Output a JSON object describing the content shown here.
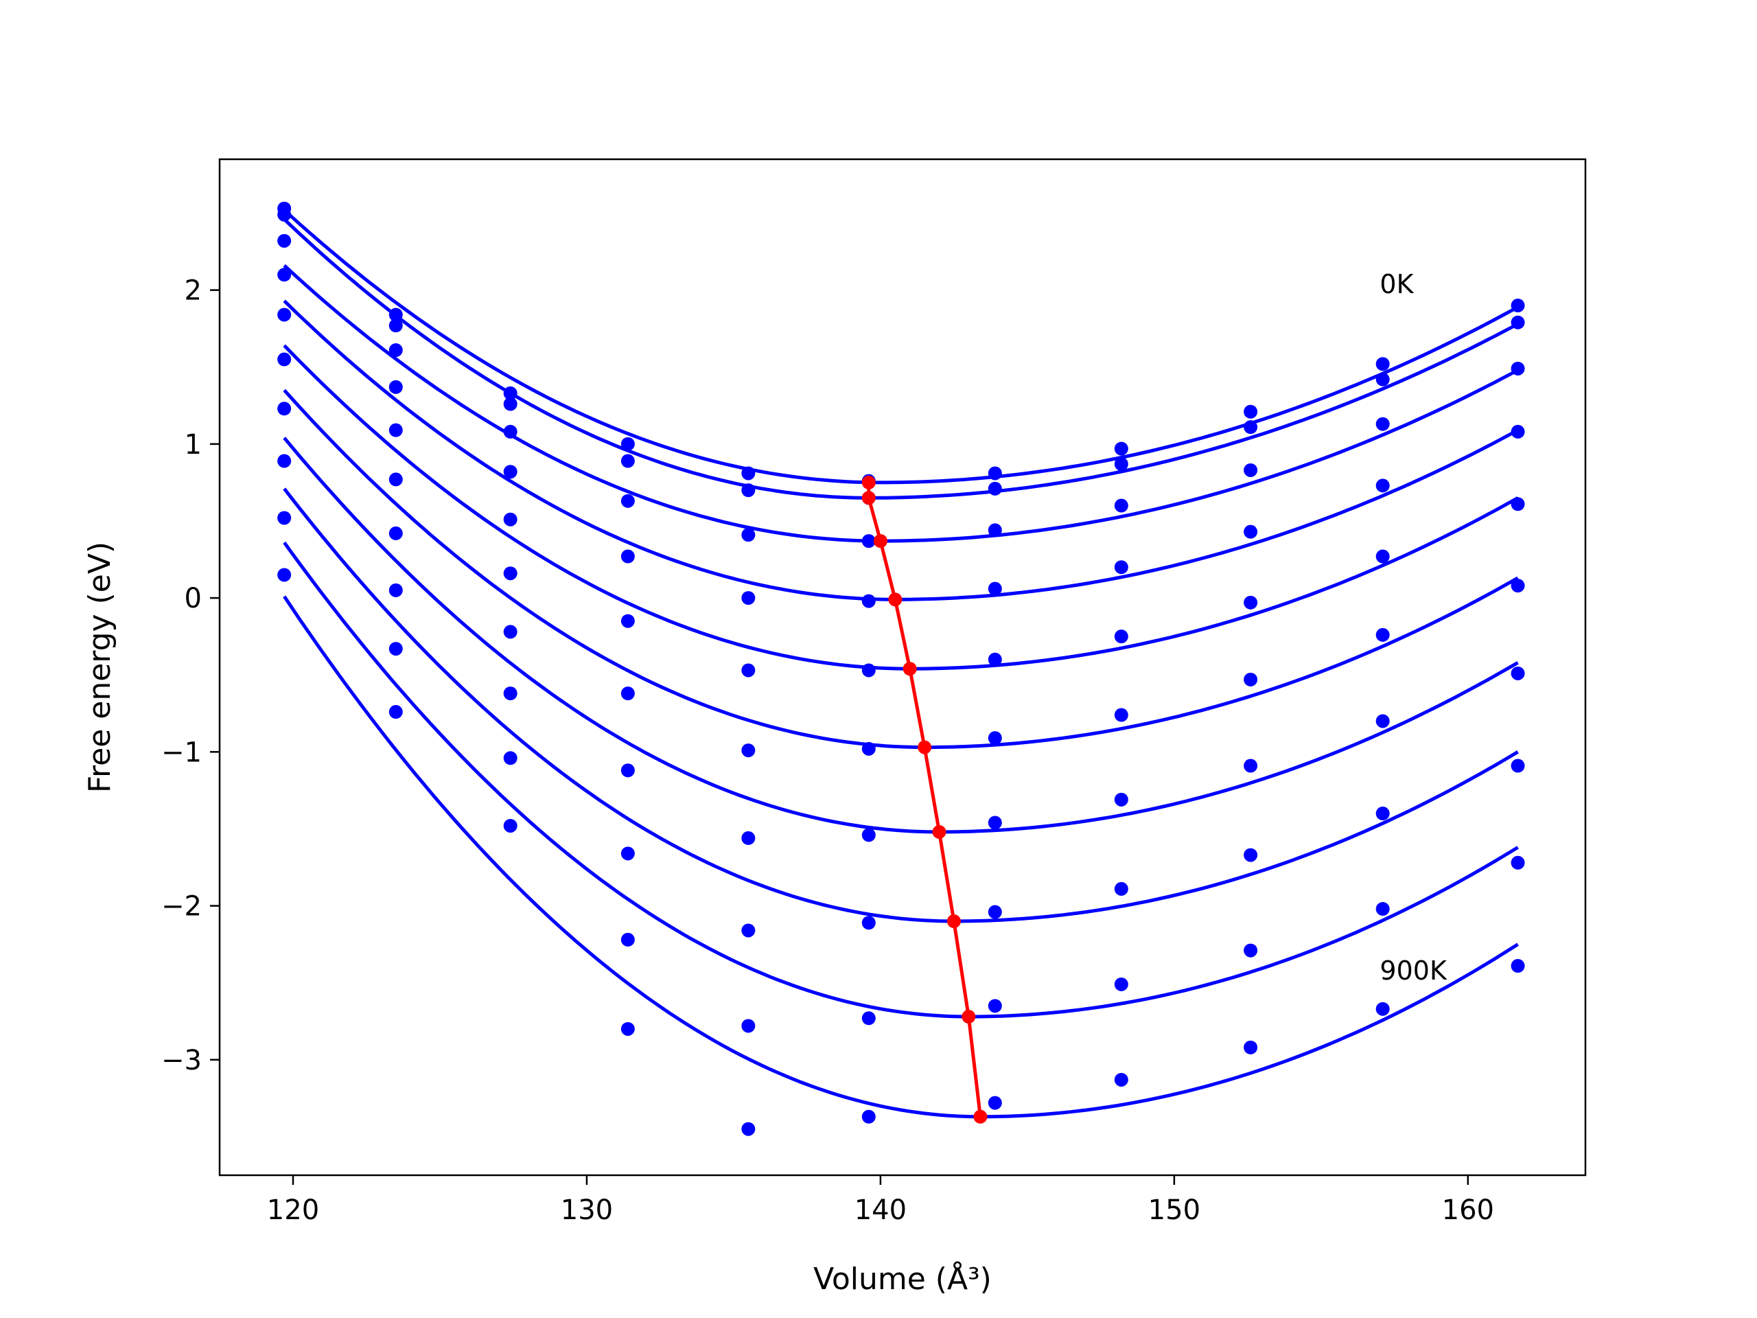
{
  "chart_data": {
    "type": "scatter",
    "xlabel": "Volume (Å³)",
    "ylabel": "Free energy (eV)",
    "xlim": [
      117.5,
      164
    ],
    "ylim": [
      -3.75,
      2.85
    ],
    "xticks": [
      120,
      130,
      140,
      150,
      160
    ],
    "yticks": [
      -3,
      -2,
      -1,
      0,
      1,
      2
    ],
    "ytick_labels": [
      "−3",
      "−2",
      "−1",
      "0",
      "1",
      "2"
    ],
    "grid": false,
    "legend": "none",
    "x": [
      119.7,
      123.5,
      127.4,
      131.4,
      135.5,
      139.6,
      143.9,
      148.2,
      152.6,
      157.1,
      161.7
    ],
    "series": [
      {
        "color": "#0000ff",
        "values": [
          2.53,
          1.84,
          1.33,
          1.0,
          0.81,
          0.76,
          0.81,
          0.97,
          1.21,
          1.52,
          1.9
        ]
      },
      {
        "color": "#0000ff",
        "values": [
          2.49,
          1.77,
          1.26,
          0.89,
          0.7,
          0.65,
          0.71,
          0.87,
          1.11,
          1.42,
          1.79
        ]
      },
      {
        "color": "#0000ff",
        "values": [
          2.32,
          1.61,
          1.08,
          0.63,
          0.41,
          0.37,
          0.44,
          0.6,
          0.83,
          1.13,
          1.49
        ]
      },
      {
        "color": "#0000ff",
        "values": [
          2.1,
          1.37,
          0.82,
          0.27,
          0.0,
          -0.02,
          0.06,
          0.2,
          0.43,
          0.73,
          1.08
        ]
      },
      {
        "color": "#0000ff",
        "values": [
          1.84,
          1.09,
          0.51,
          -0.15,
          -0.47,
          -0.47,
          -0.4,
          -0.25,
          -0.03,
          0.27,
          0.61
        ]
      },
      {
        "color": "#0000ff",
        "values": [
          1.55,
          0.77,
          0.16,
          -0.62,
          -0.99,
          -0.98,
          -0.91,
          -0.76,
          -0.53,
          -0.24,
          0.08
        ]
      },
      {
        "color": "#0000ff",
        "values": [
          1.23,
          0.42,
          -0.22,
          -1.12,
          -1.56,
          -1.54,
          -1.46,
          -1.31,
          -1.09,
          -0.8,
          -0.49
        ]
      },
      {
        "color": "#0000ff",
        "values": [
          0.89,
          0.05,
          -0.62,
          -1.66,
          -2.16,
          -2.11,
          -2.04,
          -1.89,
          -1.67,
          -1.4,
          -1.09
        ]
      },
      {
        "color": "#0000ff",
        "values": [
          0.52,
          -0.33,
          -1.04,
          -2.22,
          -2.78,
          -2.73,
          -2.65,
          -2.51,
          -2.29,
          -2.02,
          -1.72
        ]
      },
      {
        "color": "#0000ff",
        "values": [
          0.15,
          -0.74,
          -1.48,
          -2.8,
          -3.45,
          -3.37,
          -3.28,
          -3.13,
          -2.92,
          -2.67,
          -2.39
        ]
      }
    ],
    "fit_curves": {
      "color": "#0000ff",
      "x_range": [
        119.7,
        161.7
      ],
      "minima_x": [
        140.0,
        139.6,
        140.0,
        140.5,
        141.0,
        141.5,
        142.0,
        142.5,
        143.0,
        143.4
      ],
      "minima_y": [
        0.75,
        0.65,
        0.37,
        -0.01,
        -0.46,
        -0.97,
        -1.52,
        -2.1,
        -2.72,
        -3.37
      ],
      "left_y": [
        2.52,
        2.46,
        2.16,
        1.93,
        1.64,
        1.35,
        1.04,
        0.71,
        0.36,
        0.01
      ],
      "right_y": [
        1.89,
        1.78,
        1.48,
        1.09,
        0.65,
        0.13,
        -0.42,
        -1.0,
        -1.62,
        -2.25
      ]
    },
    "equilibrium": {
      "color": "#ff0000",
      "x": [
        139.6,
        139.6,
        140.0,
        140.5,
        141.0,
        141.5,
        142.0,
        142.5,
        143.0,
        143.4
      ],
      "y": [
        0.75,
        0.65,
        0.37,
        -0.01,
        -0.46,
        -0.97,
        -1.52,
        -2.1,
        -2.72,
        -3.37
      ]
    },
    "annotations": [
      {
        "text": "0K",
        "x": 157.0,
        "y": 1.98
      },
      {
        "text": "900K",
        "x": 157.0,
        "y": -2.48
      }
    ]
  }
}
